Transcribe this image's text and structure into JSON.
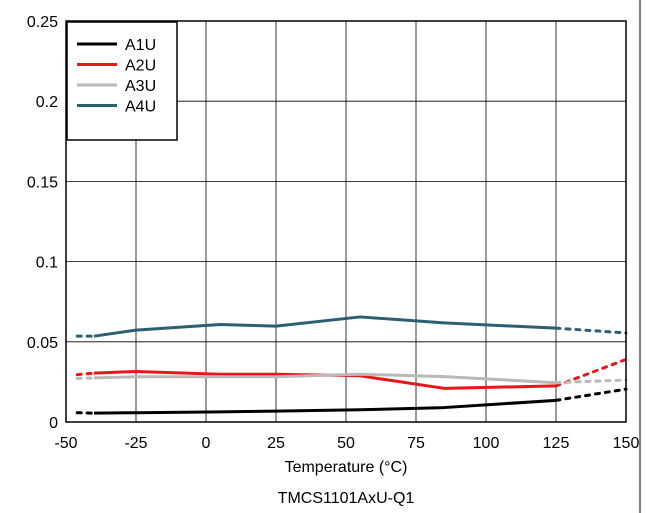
{
  "chart_data": {
    "type": "line",
    "title": "",
    "caption": "TMCS1101AxU-Q1",
    "xlabel": "Temperature (°C)",
    "ylabel": "",
    "xlim": [
      -50,
      150
    ],
    "ylim": [
      0,
      0.25
    ],
    "x_ticks": [
      -50,
      -25,
      0,
      25,
      50,
      75,
      100,
      125,
      150
    ],
    "y_ticks": [
      0,
      0.05,
      0.1,
      0.15,
      0.2,
      0.25
    ],
    "x_tick_labels": [
      "-50",
      "-25",
      "0",
      "25",
      "50",
      "75",
      "100",
      "125",
      "150"
    ],
    "y_tick_labels": [
      "0",
      "0.05",
      "0.1",
      "0.15",
      "0.2",
      "0.25"
    ],
    "grid": true,
    "legend_position": "top-left",
    "series": [
      {
        "name": "A1U",
        "color": "#000000",
        "x": [
          -40,
          -25,
          5,
          25,
          55,
          85,
          125
        ],
        "y": [
          0.0055,
          0.0058,
          0.0063,
          0.0068,
          0.0076,
          0.009,
          0.0135
        ],
        "extrapolated_low": [
          [
            -46,
            0.0058
          ],
          [
            -40,
            0.0055
          ]
        ],
        "extrapolated_high": [
          [
            125,
            0.0135
          ],
          [
            150,
            0.0205
          ]
        ]
      },
      {
        "name": "A2U",
        "color": "#e8161b",
        "x": [
          -40,
          -25,
          5,
          25,
          55,
          85,
          125
        ],
        "y": [
          0.0305,
          0.0315,
          0.0298,
          0.0298,
          0.0288,
          0.021,
          0.0225
        ],
        "extrapolated_low": [
          [
            -46,
            0.0295
          ],
          [
            -40,
            0.0305
          ]
        ],
        "extrapolated_high": [
          [
            125,
            0.0225
          ],
          [
            150,
            0.039
          ]
        ]
      },
      {
        "name": "A3U",
        "color": "#b9b9b9",
        "x": [
          -40,
          -25,
          5,
          25,
          55,
          85,
          125
        ],
        "y": [
          0.0275,
          0.0282,
          0.0282,
          0.0282,
          0.0298,
          0.0283,
          0.0245
        ],
        "extrapolated_low": [
          [
            -46,
            0.0272
          ],
          [
            -40,
            0.0275
          ]
        ],
        "extrapolated_high": [
          [
            125,
            0.0245
          ],
          [
            150,
            0.0262
          ]
        ]
      },
      {
        "name": "A4U",
        "color": "#2c5f73",
        "x": [
          -40,
          -25,
          5,
          25,
          55,
          85,
          125
        ],
        "y": [
          0.0535,
          0.0573,
          0.0608,
          0.0598,
          0.0655,
          0.0618,
          0.0585
        ],
        "extrapolated_low": [
          [
            -46,
            0.0535
          ],
          [
            -40,
            0.0535
          ]
        ],
        "extrapolated_high": [
          [
            125,
            0.0585
          ],
          [
            150,
            0.0555
          ]
        ]
      }
    ]
  }
}
